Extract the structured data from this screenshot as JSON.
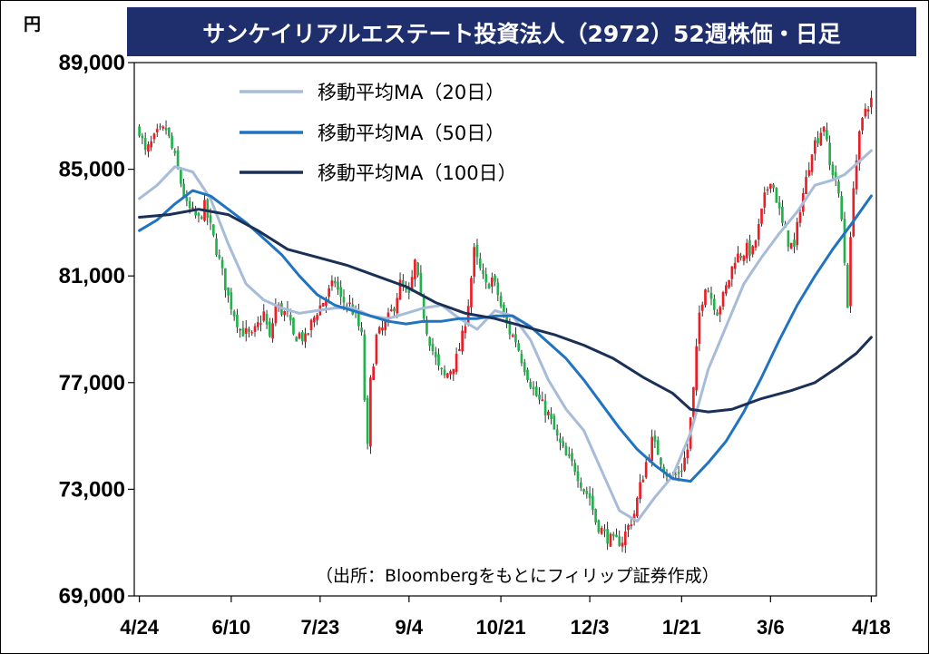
{
  "title": "サンケイリアルエステート投資法人（2972）52週株価・日足",
  "unit_label": "円",
  "source_note": "（出所：Bloombergをもとにフィリップ証券作成）",
  "chart_data": {
    "type": "candlestick",
    "title": "サンケイリアルエステート投資法人（2972）52週株価・日足",
    "xlabel": "",
    "ylabel": "円",
    "ylim": [
      69000,
      89000
    ],
    "yticks": [
      89000,
      85000,
      81000,
      77000,
      73000,
      69000
    ],
    "ytick_labels": [
      "89,000",
      "85,000",
      "81,000",
      "77,000",
      "73,000",
      "69,000"
    ],
    "xtick_labels": [
      "4/24",
      "6/10",
      "7/23",
      "9/4",
      "10/21",
      "12/3",
      "1/21",
      "3/6",
      "4/18"
    ],
    "grid": false,
    "legend_position": "top-center",
    "up_color": "#ee1c25",
    "down_color": "#22b14c",
    "price_anchors": [
      [
        0,
        86500
      ],
      [
        2,
        85600
      ],
      [
        6,
        86300
      ],
      [
        9,
        86500
      ],
      [
        12,
        85400
      ],
      [
        16,
        83600
      ],
      [
        20,
        83100
      ],
      [
        22,
        83600
      ],
      [
        26,
        82000
      ],
      [
        30,
        80200
      ],
      [
        34,
        79000
      ],
      [
        38,
        78700
      ],
      [
        42,
        79600
      ],
      [
        44,
        78600
      ],
      [
        46,
        79900
      ],
      [
        50,
        79500
      ],
      [
        52,
        78700
      ],
      [
        54,
        78800
      ],
      [
        56,
        78600
      ],
      [
        58,
        79200
      ],
      [
        60,
        79700
      ],
      [
        63,
        80200
      ],
      [
        66,
        80800
      ],
      [
        68,
        80100
      ],
      [
        71,
        79900
      ],
      [
        73,
        79500
      ],
      [
        75,
        78700
      ],
      [
        76,
        76400
      ],
      [
        77,
        74500
      ],
      [
        78,
        77000
      ],
      [
        80,
        78700
      ],
      [
        82,
        79000
      ],
      [
        84,
        79400
      ],
      [
        86,
        79900
      ],
      [
        88,
        80700
      ],
      [
        91,
        80200
      ],
      [
        93,
        81500
      ],
      [
        95,
        80100
      ],
      [
        97,
        79000
      ],
      [
        99,
        78200
      ],
      [
        101,
        77500
      ],
      [
        103,
        77200
      ],
      [
        105,
        77500
      ],
      [
        107,
        77900
      ],
      [
        109,
        78700
      ],
      [
        111,
        80000
      ],
      [
        113,
        81900
      ],
      [
        115,
        81200
      ],
      [
        117,
        80600
      ],
      [
        119,
        80900
      ],
      [
        121,
        80300
      ],
      [
        123,
        79400
      ],
      [
        125,
        78900
      ],
      [
        127,
        78600
      ],
      [
        129,
        77900
      ],
      [
        131,
        77300
      ],
      [
        133,
        76700
      ],
      [
        135,
        76300
      ],
      [
        138,
        75800
      ],
      [
        141,
        74900
      ],
      [
        144,
        74200
      ],
      [
        147,
        73800
      ],
      [
        150,
        73000
      ],
      [
        152,
        72700
      ],
      [
        154,
        71800
      ],
      [
        157,
        71300
      ],
      [
        160,
        71000
      ],
      [
        163,
        71100
      ],
      [
        165,
        71600
      ],
      [
        167,
        72100
      ],
      [
        169,
        73100
      ],
      [
        171,
        74000
      ],
      [
        173,
        74800
      ],
      [
        175,
        74400
      ],
      [
        177,
        73800
      ],
      [
        179,
        73400
      ],
      [
        181,
        73500
      ],
      [
        183,
        73800
      ],
      [
        185,
        74500
      ],
      [
        187,
        76700
      ],
      [
        189,
        79600
      ],
      [
        191,
        80700
      ],
      [
        193,
        80200
      ],
      [
        195,
        79700
      ],
      [
        197,
        80200
      ],
      [
        199,
        80900
      ],
      [
        201,
        81700
      ],
      [
        203,
        81800
      ],
      [
        205,
        82000
      ],
      [
        207,
        81900
      ],
      [
        209,
        82800
      ],
      [
        211,
        83900
      ],
      [
        213,
        84700
      ],
      [
        215,
        83900
      ],
      [
        217,
        82900
      ],
      [
        219,
        82300
      ],
      [
        221,
        82000
      ],
      [
        223,
        83600
      ],
      [
        225,
        84600
      ],
      [
        227,
        85800
      ],
      [
        229,
        86200
      ],
      [
        231,
        86700
      ],
      [
        233,
        85100
      ],
      [
        235,
        84700
      ],
      [
        237,
        83100
      ],
      [
        239,
        80000
      ],
      [
        241,
        84500
      ],
      [
        243,
        86200
      ],
      [
        245,
        87300
      ],
      [
        247,
        87600
      ]
    ],
    "series": [
      {
        "name": "移動平均MA（20日）",
        "color": "#a6bcd9",
        "points": [
          [
            0,
            83900
          ],
          [
            6,
            84400
          ],
          [
            12,
            85100
          ],
          [
            18,
            84900
          ],
          [
            24,
            83900
          ],
          [
            30,
            82200
          ],
          [
            36,
            80700
          ],
          [
            42,
            80100
          ],
          [
            48,
            79800
          ],
          [
            54,
            79600
          ],
          [
            60,
            79700
          ],
          [
            66,
            79800
          ],
          [
            72,
            79800
          ],
          [
            78,
            79500
          ],
          [
            84,
            79400
          ],
          [
            90,
            79600
          ],
          [
            96,
            79800
          ],
          [
            102,
            79900
          ],
          [
            108,
            79400
          ],
          [
            114,
            79000
          ],
          [
            120,
            79700
          ],
          [
            126,
            79500
          ],
          [
            132,
            78600
          ],
          [
            138,
            77100
          ],
          [
            144,
            76000
          ],
          [
            150,
            75200
          ],
          [
            156,
            73700
          ],
          [
            162,
            72200
          ],
          [
            168,
            71800
          ],
          [
            174,
            72700
          ],
          [
            180,
            73500
          ],
          [
            186,
            75100
          ],
          [
            192,
            77500
          ],
          [
            198,
            79100
          ],
          [
            204,
            80700
          ],
          [
            210,
            81700
          ],
          [
            216,
            82600
          ],
          [
            222,
            83400
          ],
          [
            228,
            84400
          ],
          [
            234,
            84600
          ],
          [
            238,
            84800
          ],
          [
            247,
            85700
          ]
        ]
      },
      {
        "name": "移動平均MA（50日）",
        "color": "#1f73c1",
        "points": [
          [
            0,
            82700
          ],
          [
            6,
            83100
          ],
          [
            12,
            83700
          ],
          [
            18,
            84200
          ],
          [
            24,
            84000
          ],
          [
            30,
            83500
          ],
          [
            36,
            83000
          ],
          [
            42,
            82400
          ],
          [
            48,
            81800
          ],
          [
            54,
            81000
          ],
          [
            60,
            80300
          ],
          [
            66,
            79900
          ],
          [
            72,
            79700
          ],
          [
            78,
            79500
          ],
          [
            84,
            79300
          ],
          [
            90,
            79200
          ],
          [
            96,
            79300
          ],
          [
            102,
            79300
          ],
          [
            108,
            79400
          ],
          [
            114,
            79400
          ],
          [
            120,
            79500
          ],
          [
            126,
            79500
          ],
          [
            132,
            79100
          ],
          [
            138,
            78500
          ],
          [
            144,
            77900
          ],
          [
            150,
            77100
          ],
          [
            156,
            76200
          ],
          [
            162,
            75300
          ],
          [
            168,
            74500
          ],
          [
            174,
            73900
          ],
          [
            180,
            73400
          ],
          [
            186,
            73300
          ],
          [
            192,
            74000
          ],
          [
            198,
            74800
          ],
          [
            204,
            75900
          ],
          [
            210,
            77200
          ],
          [
            216,
            78600
          ],
          [
            222,
            79900
          ],
          [
            228,
            81000
          ],
          [
            234,
            82000
          ],
          [
            240,
            82900
          ],
          [
            247,
            84000
          ]
        ]
      },
      {
        "name": "移動平均MA（100日）",
        "color": "#1a3056",
        "points": [
          [
            0,
            83200
          ],
          [
            10,
            83300
          ],
          [
            20,
            83500
          ],
          [
            30,
            83300
          ],
          [
            40,
            82700
          ],
          [
            50,
            82000
          ],
          [
            60,
            81700
          ],
          [
            70,
            81400
          ],
          [
            80,
            81000
          ],
          [
            90,
            80600
          ],
          [
            100,
            80000
          ],
          [
            110,
            79600
          ],
          [
            120,
            79400
          ],
          [
            130,
            79100
          ],
          [
            140,
            78800
          ],
          [
            150,
            78400
          ],
          [
            160,
            77900
          ],
          [
            170,
            77200
          ],
          [
            180,
            76600
          ],
          [
            186,
            76000
          ],
          [
            192,
            75900
          ],
          [
            200,
            76000
          ],
          [
            210,
            76400
          ],
          [
            220,
            76700
          ],
          [
            228,
            77000
          ],
          [
            236,
            77600
          ],
          [
            242,
            78100
          ],
          [
            247,
            78700
          ]
        ]
      }
    ]
  }
}
